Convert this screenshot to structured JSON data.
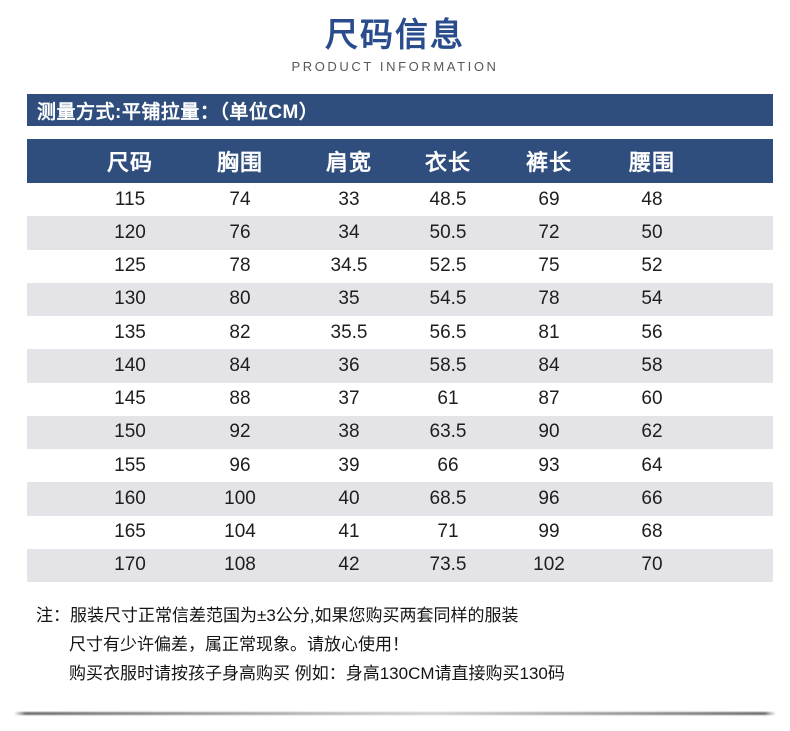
{
  "header": {
    "title": "尺码信息",
    "subtitle": "PRODUCT INFORMATION"
  },
  "measure_bar": {
    "text": "测量方式:平铺拉量：（单位CM）"
  },
  "table": {
    "columns": [
      "尺码",
      "胸围",
      "肩宽",
      "衣长",
      "裤长",
      "腰围"
    ],
    "rows": [
      [
        115,
        74,
        33,
        48.5,
        69,
        48
      ],
      [
        120,
        76,
        34,
        50.5,
        72,
        50
      ],
      [
        125,
        78,
        34.5,
        52.5,
        75,
        52
      ],
      [
        130,
        80,
        35,
        54.5,
        78,
        54
      ],
      [
        135,
        82,
        35.5,
        56.5,
        81,
        56
      ],
      [
        140,
        84,
        36,
        58.5,
        84,
        58
      ],
      [
        145,
        88,
        37,
        61,
        87,
        60
      ],
      [
        150,
        92,
        38,
        63.5,
        90,
        62
      ],
      [
        155,
        96,
        39,
        66,
        93,
        64
      ],
      [
        160,
        100,
        40,
        68.5,
        96,
        66
      ],
      [
        165,
        104,
        41,
        71,
        99,
        68
      ],
      [
        170,
        108,
        42,
        73.5,
        102,
        70
      ]
    ]
  },
  "notes": {
    "lines": [
      "注：服装尺寸正常信差范国为±3公分,如果您购买两套同样的服装",
      "尺寸有少许偏差，属正常现象。请放心使用！",
      "购买衣服时请按孩子身高购买 例如：身高130CM请直接购买130码"
    ]
  },
  "colors": {
    "navy": "#2f4e7d",
    "title_blue": "#2a4c8d",
    "row_alt": "#e4e4e8"
  }
}
